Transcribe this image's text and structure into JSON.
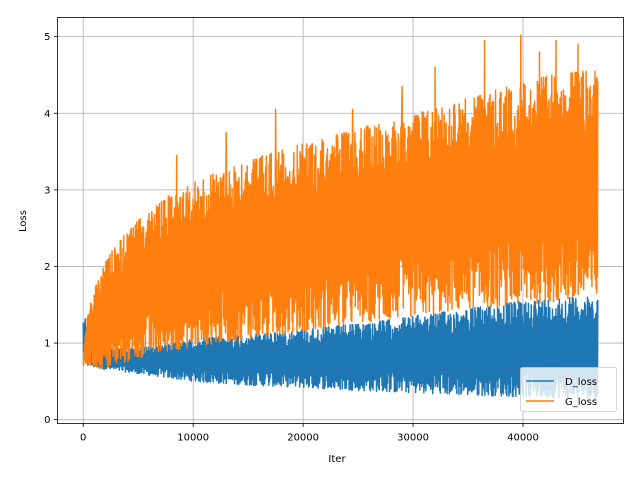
{
  "chart_data": {
    "type": "line",
    "title": "",
    "xlabel": "Iter",
    "ylabel": "Loss",
    "xlim": [
      -2340,
      49140
    ],
    "ylim": [
      -0.05,
      5.25
    ],
    "x_ticks": [
      0,
      10000,
      20000,
      30000,
      40000
    ],
    "x_tick_labels": [
      "0",
      "10000",
      "20000",
      "30000",
      "40000"
    ],
    "y_ticks": [
      0,
      1,
      2,
      3,
      4,
      5
    ],
    "y_tick_labels": [
      "0",
      "1",
      "2",
      "3",
      "4",
      "5"
    ],
    "grid": true,
    "legend_position": "lower-right",
    "x_max": 46800,
    "series": [
      {
        "name": "D_loss",
        "color": "#1f77b4",
        "envelope": {
          "x": [
            0,
            300,
            1000,
            2000,
            3000,
            5000,
            8000,
            10000,
            15000,
            20000,
            25000,
            30000,
            35000,
            40000,
            44000,
            46800
          ],
          "low": [
            0.7,
            0.7,
            0.68,
            0.66,
            0.64,
            0.6,
            0.54,
            0.5,
            0.45,
            0.42,
            0.38,
            0.35,
            0.32,
            0.3,
            0.28,
            0.27
          ],
          "high": [
            1.38,
            1.3,
            1.05,
            0.95,
            0.92,
            0.95,
            1.0,
            1.05,
            1.12,
            1.18,
            1.25,
            1.35,
            1.45,
            1.55,
            1.6,
            1.6
          ]
        }
      },
      {
        "name": "G_loss",
        "color": "#ff7f0e",
        "envelope": {
          "x": [
            0,
            300,
            1000,
            2000,
            3000,
            5000,
            8000,
            10000,
            15000,
            20000,
            25000,
            30000,
            35000,
            40000,
            44000,
            46800
          ],
          "low": [
            0.7,
            0.72,
            0.68,
            0.65,
            0.7,
            0.8,
            0.9,
            0.95,
            1.05,
            1.15,
            1.25,
            1.35,
            1.45,
            1.5,
            1.55,
            1.55
          ],
          "high": [
            0.8,
            1.3,
            1.7,
            2.05,
            2.3,
            2.6,
            2.95,
            3.1,
            3.4,
            3.6,
            3.8,
            4.0,
            4.2,
            4.4,
            4.55,
            4.55
          ]
        },
        "spikes": [
          {
            "x": 8500,
            "y": 3.45
          },
          {
            "x": 13000,
            "y": 3.75
          },
          {
            "x": 17500,
            "y": 4.05
          },
          {
            "x": 24500,
            "y": 4.05
          },
          {
            "x": 29000,
            "y": 4.35
          },
          {
            "x": 32000,
            "y": 4.6
          },
          {
            "x": 36500,
            "y": 4.95
          },
          {
            "x": 39800,
            "y": 5.02
          },
          {
            "x": 41500,
            "y": 4.8
          },
          {
            "x": 43000,
            "y": 4.95
          },
          {
            "x": 45000,
            "y": 4.9
          }
        ]
      }
    ]
  }
}
